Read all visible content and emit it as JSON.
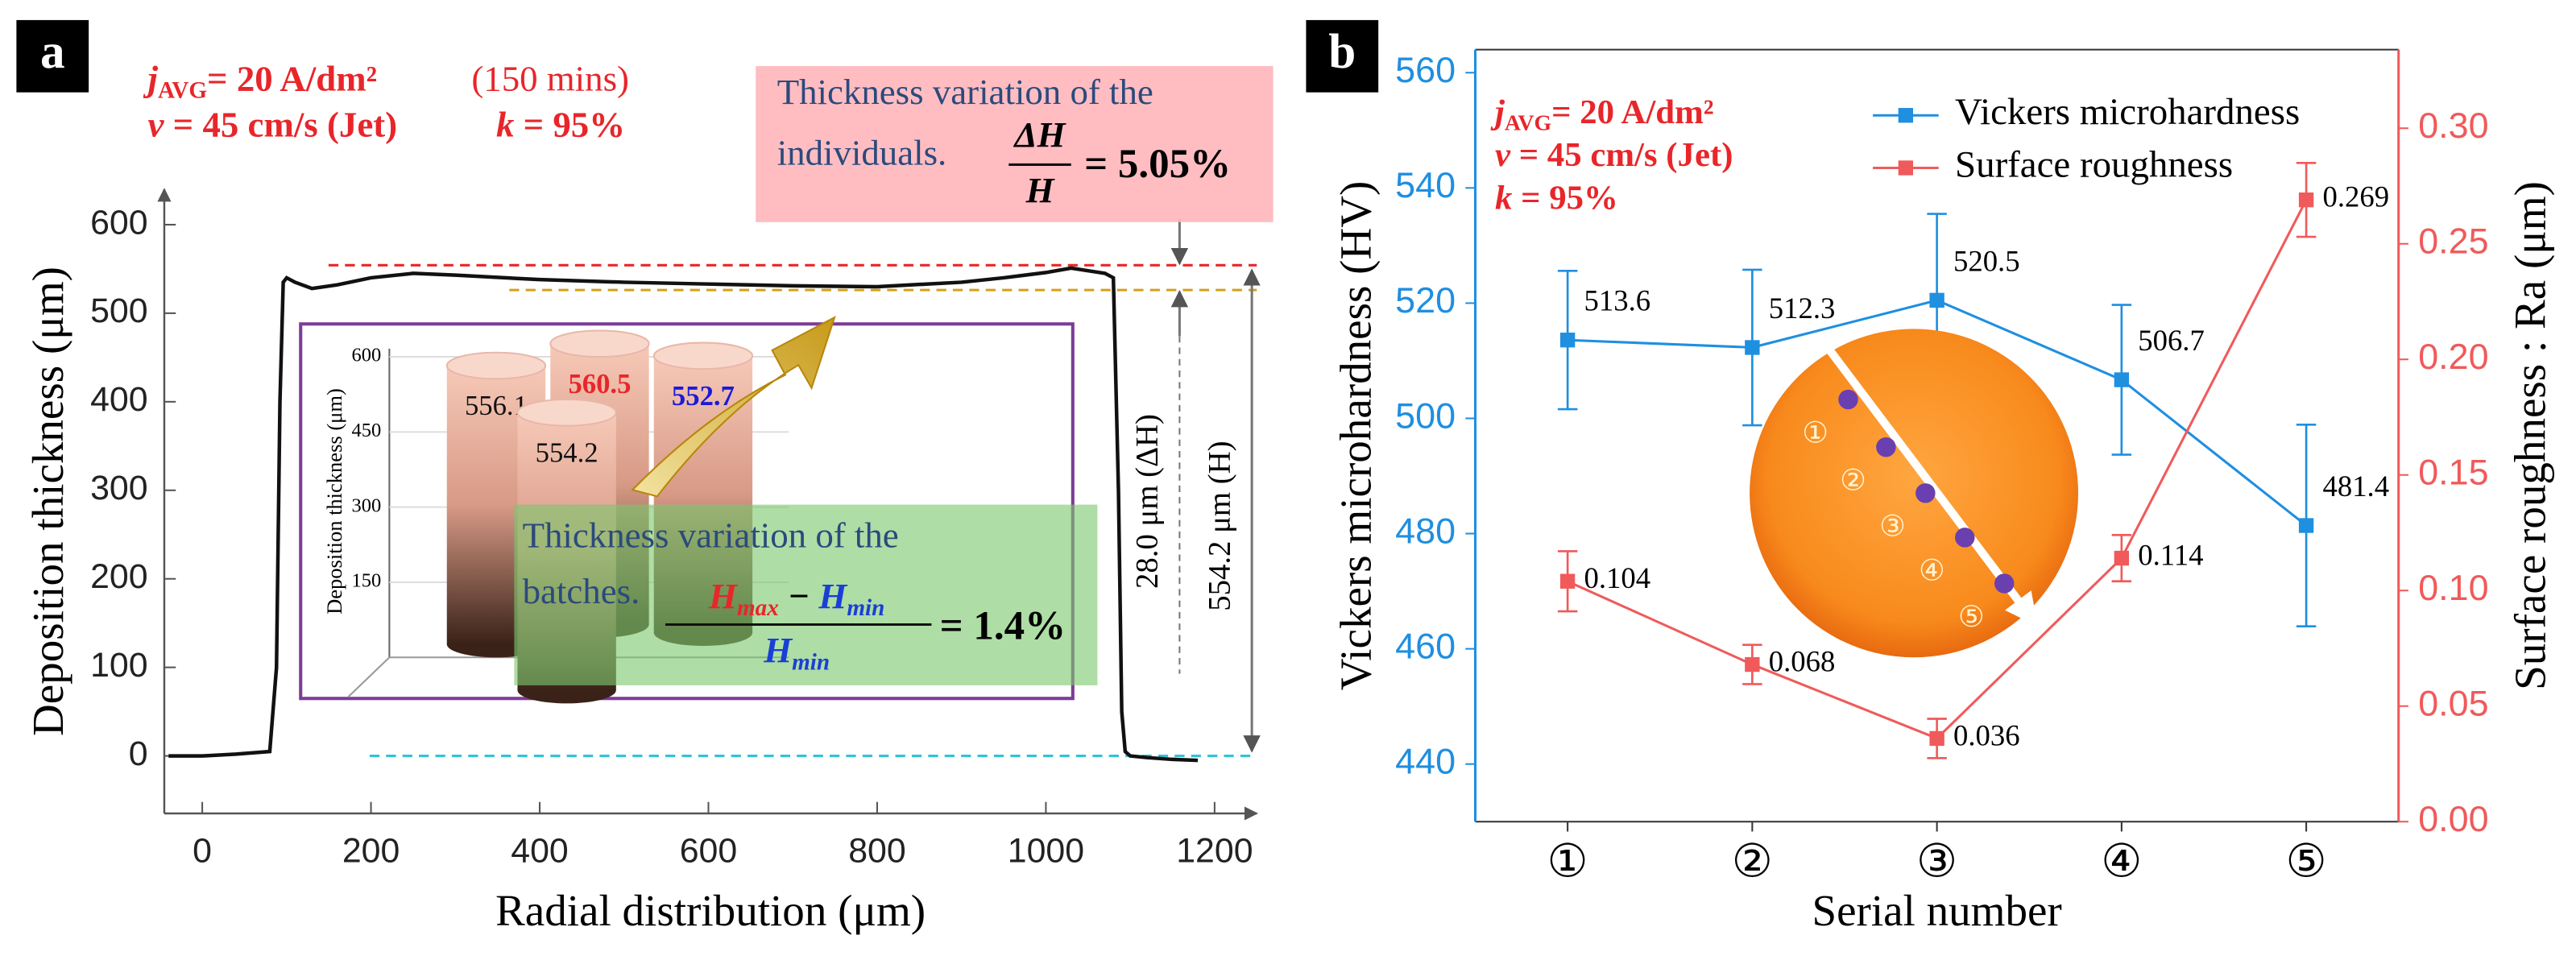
{
  "chart_data": [
    {
      "type": "line",
      "panel_label": "a",
      "xlabel": "Radial distribution (μm)",
      "ylabel": "Deposition thickness (μm)",
      "x": [
        -40,
        0,
        40,
        80,
        88,
        92,
        96,
        100,
        110,
        130,
        160,
        200,
        250,
        300,
        400,
        500,
        600,
        700,
        800,
        900,
        950,
        1000,
        1030,
        1050,
        1070,
        1080,
        1086,
        1090,
        1094,
        1100,
        1120,
        1150,
        1180
      ],
      "values": [
        0,
        0,
        2,
        5,
        100,
        400,
        535,
        540,
        535,
        528,
        532,
        540,
        545,
        543,
        538,
        535,
        533,
        531,
        530,
        535,
        540,
        546,
        551,
        548,
        545,
        540,
        300,
        50,
        5,
        0,
        -2,
        -4,
        -5
      ],
      "color": "#111111",
      "xlim": [
        -45,
        1250
      ],
      "xticks": [
        0,
        200,
        400,
        600,
        800,
        1000,
        1200
      ],
      "ylim": [
        -65,
        640
      ],
      "yticks": [
        0,
        100,
        200,
        300,
        400,
        500,
        600
      ],
      "conditions": [
        [
          {
            "text": "j",
            "style": "italic"
          },
          {
            "text": "AVG",
            "style": "sub"
          },
          {
            "text": "= 20 A/dm²"
          }
        ],
        [
          {
            "text": "v",
            "style": "italic"
          },
          {
            "text": " = 45 cm/s (Jet)"
          }
        ]
      ],
      "time": "(150 mins)",
      "k_condition": [
        {
          "text": "k",
          "style": "italic"
        },
        {
          "text": " = 95%"
        }
      ],
      "condition_color": "#e8262a",
      "ref_lines": [
        {
          "value": 554.2,
          "color": "#e8262a"
        },
        {
          "value": 526.2,
          "color": "#d4a017"
        },
        {
          "value": 0,
          "color": "#2ec4d6"
        }
      ],
      "delta_label": "28.0 μm (ΔH)",
      "height_label": "554.2 μm (H)",
      "individual_note": {
        "text": [
          "Thickness variation of the",
          "individuals."
        ],
        "num": [
          {
            "text": "ΔH"
          }
        ],
        "den": [
          {
            "text": "H"
          }
        ],
        "result": "= 5.05%"
      },
      "batch_note": {
        "text": [
          "Thickness variation of the",
          "batches."
        ],
        "num": [
          {
            "text": "H",
            "color": "#e8262a"
          },
          {
            "text": "max",
            "style": "sub",
            "color": "#e8262a"
          },
          {
            "text": " − "
          },
          {
            "text": "H",
            "color": "#1a3fd6"
          },
          {
            "text": "min",
            "style": "sub",
            "color": "#1a3fd6"
          }
        ],
        "den": [
          {
            "text": "H",
            "color": "#1a3fd6"
          },
          {
            "text": "min",
            "style": "sub",
            "color": "#1a3fd6"
          }
        ],
        "result": "= 1.4%"
      }
    },
    {
      "type": "bar3d",
      "ylabel": "Deposition thickness (μm)",
      "values": [
        556.1,
        560.5,
        552.7,
        554.2
      ],
      "label_colors": [
        "#111111",
        "#e8262a",
        "#1a1adb",
        "#111111"
      ],
      "label_bold": [
        false,
        true,
        true,
        false
      ],
      "ylim": [
        0,
        600
      ],
      "yticks": [
        150,
        300,
        450,
        600
      ]
    },
    {
      "type": "dual",
      "panel_label": "b",
      "xlabel": "Serial number",
      "ylabel": "Vickers microhardness (HV)",
      "y2label": "Surface roughness : Ra (μm)",
      "categories": [
        "①",
        "②",
        "③",
        "④",
        "⑤"
      ],
      "series": [
        {
          "name": "Vickers microhardness",
          "color": "#1f8fe0",
          "values": [
            513.6,
            512.3,
            520.5,
            506.7,
            481.4
          ],
          "errors": [
            12,
            13.5,
            15,
            13,
            17.5
          ]
        },
        {
          "name": "Surface roughness",
          "color": "#f05a5a",
          "axis": "y2",
          "values": [
            0.104,
            0.068,
            0.036,
            0.114,
            0.269
          ],
          "errors": [
            0.013,
            0.0085,
            0.0085,
            0.01,
            0.016
          ]
        }
      ],
      "ylim": [
        430,
        564
      ],
      "yticks": [
        440,
        460,
        480,
        500,
        520,
        540,
        560
      ],
      "ycolor": "#1f8fe0",
      "y2lim": [
        0,
        0.334
      ],
      "y2ticks": [
        {
          "value": 0,
          "label": "0.00"
        },
        0.05,
        {
          "value": 0.1,
          "label": "0.10"
        },
        0.15,
        {
          "value": 0.2,
          "label": "0.20"
        },
        0.25,
        {
          "value": 0.3,
          "label": "0.30"
        }
      ],
      "y2color": "#f05a5a",
      "legend": "top-right",
      "conditions": [
        [
          {
            "text": "j",
            "style": "italic"
          },
          {
            "text": "AVG",
            "style": "sub"
          },
          {
            "text": "= 20 A/dm²"
          }
        ],
        [
          {
            "text": "v",
            "style": "italic"
          },
          {
            "text": " = 45 cm/s (Jet)"
          }
        ],
        [
          {
            "text": "k",
            "style": "italic"
          },
          {
            "text": " = 95%"
          }
        ]
      ],
      "condition_color": "#e8262a"
    }
  ]
}
